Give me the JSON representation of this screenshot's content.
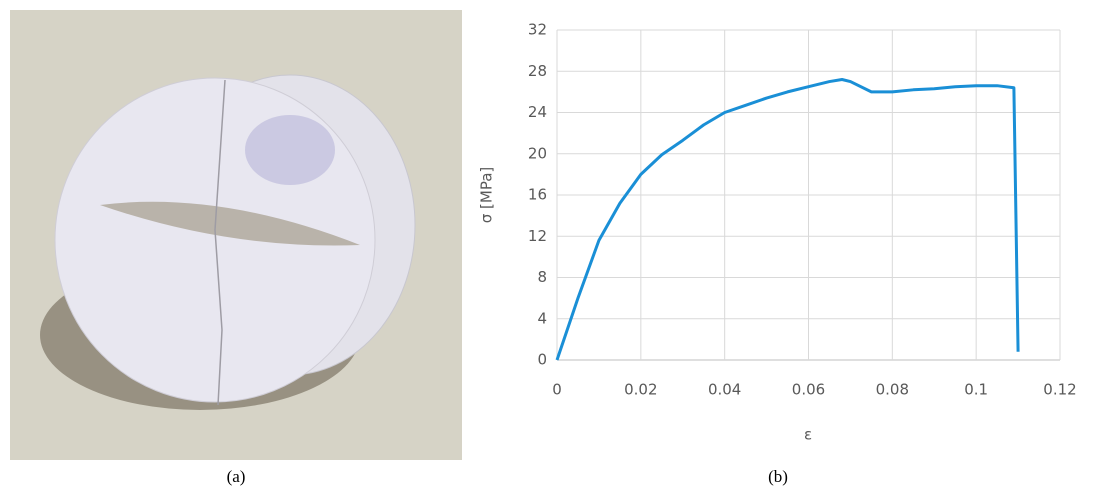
{
  "captions": [
    "(a)",
    "(b)"
  ],
  "chart_data": {
    "type": "line",
    "x_label": "ε",
    "y_label": "σ [MPa]",
    "x": [
      0,
      0.005,
      0.01,
      0.015,
      0.02,
      0.025,
      0.03,
      0.035,
      0.04,
      0.045,
      0.05,
      0.055,
      0.06,
      0.065,
      0.068,
      0.07,
      0.075,
      0.08,
      0.085,
      0.09,
      0.095,
      0.1,
      0.105,
      0.109,
      0.11
    ],
    "values": [
      0,
      6,
      11.6,
      15.2,
      18,
      19.9,
      21.3,
      22.8,
      24,
      24.7,
      25.4,
      26,
      26.5,
      27,
      27.2,
      27,
      26,
      26,
      26.2,
      26.3,
      26.5,
      26.6,
      26.6,
      26.4,
      0.8
    ],
    "color": "#1a8fd6",
    "xlim": [
      0,
      0.12
    ],
    "xticks": [
      0,
      0.02,
      0.04,
      0.06,
      0.08,
      0.1,
      0.12
    ],
    "ylim": [
      0,
      32
    ],
    "yticks": [
      0,
      4,
      8,
      12,
      16,
      20,
      24,
      28,
      32
    ],
    "grid": true
  }
}
